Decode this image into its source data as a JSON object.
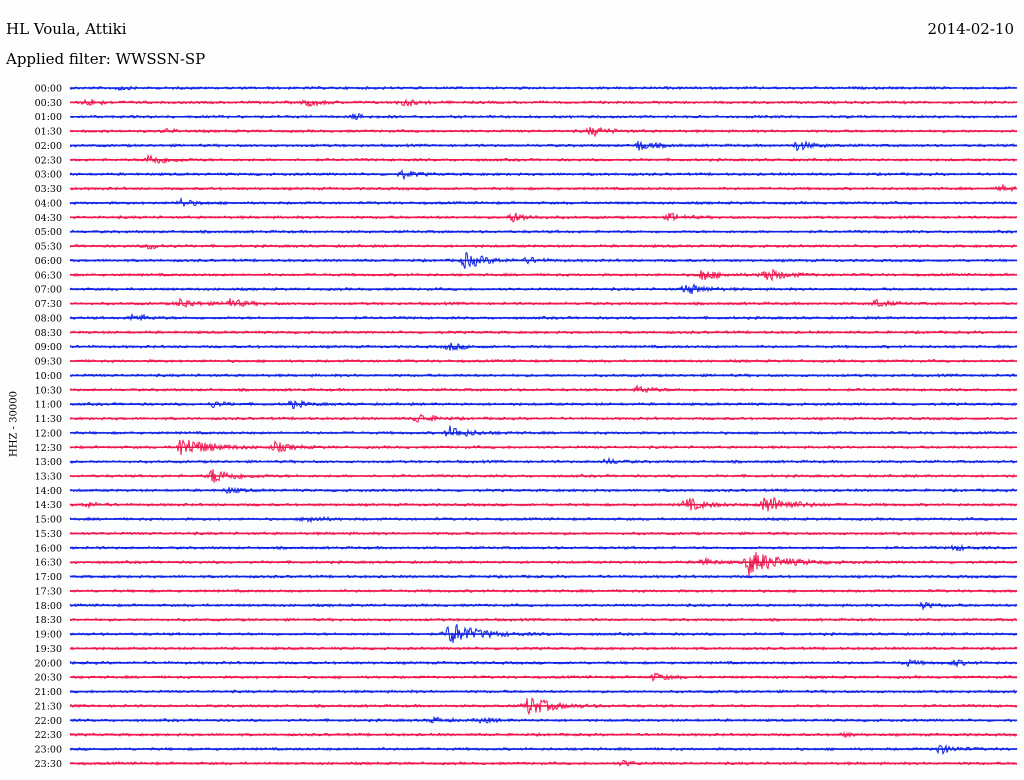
{
  "header": {
    "station": "HL Voula, Attiki",
    "date": "2014-02-10",
    "filter_label": "Applied filter: WWSSN-SP",
    "channel_label": "HHZ - 30000"
  },
  "colors": {
    "blue": "#0f23e6",
    "red": "#f0174f"
  },
  "chart_data": {
    "type": "line",
    "title": "HL Voula, Attiki",
    "y_tick_labels": [
      "00:00",
      "00:30",
      "01:00",
      "01:30",
      "02:00",
      "02:30",
      "03:00",
      "03:30",
      "04:00",
      "04:30",
      "05:00",
      "05:30",
      "06:00",
      "06:30",
      "07:00",
      "07:30",
      "08:00",
      "08:30",
      "09:00",
      "09:30",
      "10:00",
      "10:30",
      "11:00",
      "11:30",
      "12:00",
      "12:30",
      "13:00",
      "13:30",
      "14:00",
      "14:30",
      "15:00",
      "15:30",
      "16:00",
      "16:30",
      "17:00",
      "17:30",
      "18:00",
      "18:30",
      "19:00",
      "19:30",
      "20:00",
      "20:30",
      "21:00",
      "21:30",
      "22:00",
      "22:30",
      "23:00",
      "23:30"
    ],
    "ylabel": "HHZ - 30000",
    "trace_color_order": [
      "blue",
      "red"
    ],
    "trace_minutes": 30,
    "events": [
      {
        "trace": 0,
        "minute": 1.5,
        "amp": 2
      },
      {
        "trace": 1,
        "minute": 0.5,
        "amp": 4
      },
      {
        "trace": 1,
        "minute": 7.5,
        "amp": 4
      },
      {
        "trace": 1,
        "minute": 10.5,
        "amp": 4
      },
      {
        "trace": 2,
        "minute": 9.0,
        "amp": 3
      },
      {
        "trace": 3,
        "minute": 3.0,
        "amp": 2
      },
      {
        "trace": 3,
        "minute": 16.5,
        "amp": 5
      },
      {
        "trace": 4,
        "minute": 18.0,
        "amp": 5
      },
      {
        "trace": 4,
        "minute": 23.0,
        "amp": 5
      },
      {
        "trace": 5,
        "minute": 2.5,
        "amp": 6
      },
      {
        "trace": 6,
        "minute": 10.5,
        "amp": 4
      },
      {
        "trace": 7,
        "minute": 29.5,
        "amp": 3
      },
      {
        "trace": 8,
        "minute": 3.5,
        "amp": 4
      },
      {
        "trace": 9,
        "minute": 14.0,
        "amp": 5
      },
      {
        "trace": 9,
        "minute": 19.0,
        "amp": 4
      },
      {
        "trace": 11,
        "minute": 2.5,
        "amp": 3
      },
      {
        "trace": 12,
        "minute": 12.5,
        "amp": 8
      },
      {
        "trace": 12,
        "minute": 14.5,
        "amp": 3
      },
      {
        "trace": 13,
        "minute": 20.0,
        "amp": 6
      },
      {
        "trace": 13,
        "minute": 22.0,
        "amp": 7
      },
      {
        "trace": 14,
        "minute": 19.5,
        "amp": 6
      },
      {
        "trace": 15,
        "minute": 3.5,
        "amp": 5
      },
      {
        "trace": 15,
        "minute": 5.0,
        "amp": 5
      },
      {
        "trace": 15,
        "minute": 25.5,
        "amp": 4
      },
      {
        "trace": 16,
        "minute": 2.0,
        "amp": 4
      },
      {
        "trace": 18,
        "minute": 12.0,
        "amp": 4
      },
      {
        "trace": 21,
        "minute": 18.0,
        "amp": 4
      },
      {
        "trace": 22,
        "minute": 4.5,
        "amp": 3
      },
      {
        "trace": 22,
        "minute": 7.0,
        "amp": 4
      },
      {
        "trace": 23,
        "minute": 11.0,
        "amp": 5
      },
      {
        "trace": 24,
        "minute": 12.0,
        "amp": 7
      },
      {
        "trace": 25,
        "minute": 3.5,
        "amp": 11
      },
      {
        "trace": 25,
        "minute": 6.5,
        "amp": 5
      },
      {
        "trace": 26,
        "minute": 17.0,
        "amp": 3
      },
      {
        "trace": 27,
        "minute": 4.5,
        "amp": 8
      },
      {
        "trace": 28,
        "minute": 5.0,
        "amp": 3
      },
      {
        "trace": 29,
        "minute": 0.5,
        "amp": 3
      },
      {
        "trace": 29,
        "minute": 19.5,
        "amp": 7
      },
      {
        "trace": 29,
        "minute": 22.0,
        "amp": 10
      },
      {
        "trace": 30,
        "minute": 7.5,
        "amp": 4
      },
      {
        "trace": 32,
        "minute": 28.0,
        "amp": 3
      },
      {
        "trace": 33,
        "minute": 21.5,
        "amp": 13
      },
      {
        "trace": 33,
        "minute": 20.0,
        "amp": 4
      },
      {
        "trace": 36,
        "minute": 27.0,
        "amp": 3
      },
      {
        "trace": 38,
        "minute": 12.0,
        "amp": 12
      },
      {
        "trace": 40,
        "minute": 26.5,
        "amp": 3
      },
      {
        "trace": 40,
        "minute": 28.0,
        "amp": 3
      },
      {
        "trace": 41,
        "minute": 18.5,
        "amp": 4
      },
      {
        "trace": 43,
        "minute": 14.5,
        "amp": 10
      },
      {
        "trace": 44,
        "minute": 11.5,
        "amp": 3
      },
      {
        "trace": 44,
        "minute": 13.0,
        "amp": 3
      },
      {
        "trace": 45,
        "minute": 24.5,
        "amp": 2
      },
      {
        "trace": 46,
        "minute": 27.5,
        "amp": 5
      },
      {
        "trace": 47,
        "minute": 17.5,
        "amp": 3
      }
    ]
  }
}
